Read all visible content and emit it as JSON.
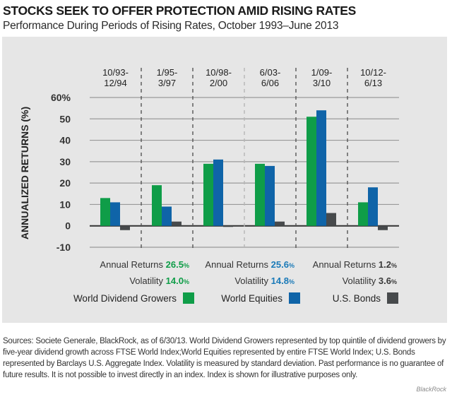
{
  "header": {
    "title": "STOCKS SEEK TO OFFER PROTECTION AMID RISING RATES",
    "subtitle": "Performance During Periods of Rising Rates, October 1993–June 2013"
  },
  "colors": {
    "green": "#0f9d48",
    "blue": "#0f64a8",
    "gray": "#474a4c",
    "panel": "#e6e6e6",
    "grid": "#8a8a8a"
  },
  "chart_data": {
    "type": "bar",
    "title": "STOCKS SEEK TO OFFER PROTECTION AMID RISING RATES",
    "subtitle": "Performance During Periods of Rising Rates, October 1993–June 2013",
    "xlabel": "",
    "ylabel": "ANNUALIZED RETURNS (%)",
    "ylim": [
      -10,
      60
    ],
    "yticks": [
      -10,
      0,
      10,
      20,
      30,
      40,
      50,
      60
    ],
    "ytick_labels": [
      "-10",
      "0",
      "10",
      "20",
      "30",
      "40",
      "50",
      "60%"
    ],
    "grid": true,
    "legend_position": "bottom",
    "categories": [
      [
        "10/93-",
        "12/94"
      ],
      [
        "1/95-",
        "3/97"
      ],
      [
        "10/98-",
        "2/00"
      ],
      [
        "6/03-",
        "6/06"
      ],
      [
        "1/09-",
        "3/10"
      ],
      [
        "10/12-",
        "6/13"
      ]
    ],
    "series": [
      {
        "name": "World Dividend Growers",
        "color": "#0f9d48",
        "values": [
          13,
          19,
          29,
          29,
          51,
          11
        ]
      },
      {
        "name": "World Equities",
        "color": "#0f64a8",
        "values": [
          11,
          9,
          31,
          28,
          54,
          18
        ]
      },
      {
        "name": "U.S. Bonds",
        "color": "#474a4c",
        "values": [
          -2,
          2,
          -0.5,
          2,
          6,
          -2
        ]
      }
    ]
  },
  "stats": [
    {
      "returns_label": "Annual Returns",
      "returns_value": "26.5",
      "volatility_label": "Volatility",
      "volatility_value": "14.0",
      "pct": "%",
      "color": "#0f9d48"
    },
    {
      "returns_label": "Annual Returns",
      "returns_value": "25.6",
      "volatility_label": "Volatility",
      "volatility_value": "14.8",
      "pct": "%",
      "color": "#1a7ab8"
    },
    {
      "returns_label": "Annual Returns",
      "returns_value": "1.2",
      "volatility_label": "Volatility",
      "volatility_value": "3.6",
      "pct": "%",
      "color": "#3a3a3a"
    }
  ],
  "legend": [
    {
      "label": "World Dividend Growers",
      "color": "#0f9d48"
    },
    {
      "label": "World Equities",
      "color": "#0f64a8"
    },
    {
      "label": "U.S. Bonds",
      "color": "#474a4c"
    }
  ],
  "footnote": "Sources: Societe Generale, BlackRock, as of 6/30/13. World Dividend Growers represented by top quintile of dividend growers by five-year dividend growth across FTSE World Index;World Equities represented by entire FTSE World Index; U.S. Bonds represented by Barclays U.S. Aggregate Index. Volatility is measured by standard deviation. Past performance is no guarantee of future results. It is not possible to invest directly in an index. Index is shown for illustrative purposes only.",
  "brand": "BlackRock"
}
